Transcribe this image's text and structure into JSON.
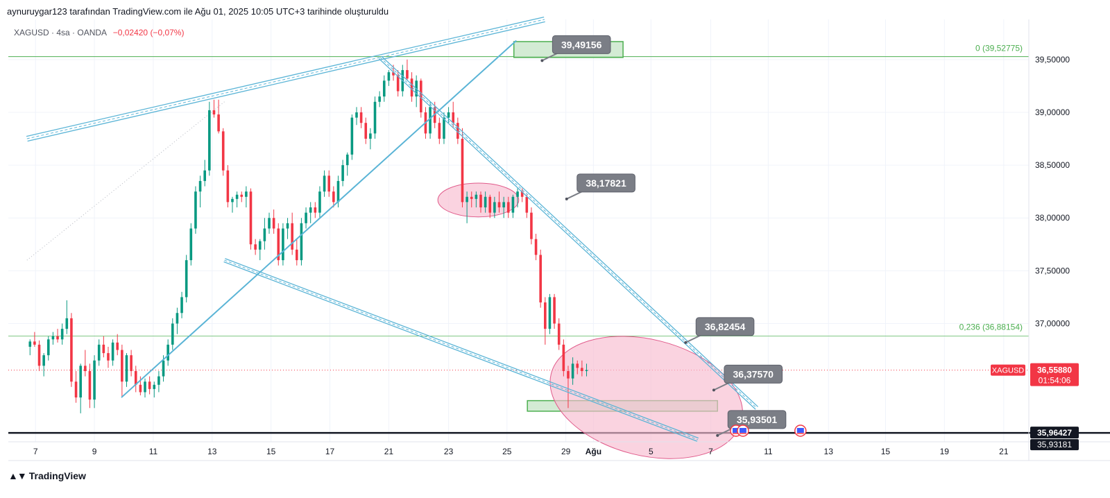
{
  "header": {
    "caption": "aynuruygar123 tarafından TradingView.com ile Ağu 01, 2025 10:05 UTC+3 tarihinde oluşturuldu",
    "symbol_line": "XAGUSD · 4sa · OANDA",
    "change": "−0,02420 (−0,07%)"
  },
  "footer": {
    "brand": "TradingView",
    "logo_icon": "tradingview-logo-icon"
  },
  "colors": {
    "up": "#089981",
    "down": "#f23645",
    "trend": "#5ab4d6",
    "fib": "#4caf50",
    "zone_fill": "#c8e6c9",
    "ellipse_fill": "#f8bbd0",
    "callout": "#7b7e86"
  },
  "chart_data": {
    "type": "candlestick",
    "symbol": "XAGUSD",
    "interval": "4sa",
    "y_axis": {
      "ylim": [
        35.88,
        39.88
      ],
      "ticks": [
        "39,50000",
        "39,00000",
        "38,50000",
        "38,00000",
        "37,50000",
        "37,00000"
      ]
    },
    "x_axis": {
      "ticks": [
        "7",
        "9",
        "11",
        "13",
        "15",
        "17",
        "21",
        "23",
        "25",
        "29",
        "Ağu",
        "5",
        "7",
        "11",
        "13",
        "15",
        "19",
        "21"
      ]
    },
    "candles": [
      [
        36.78,
        36.85,
        36.7,
        36.83
      ],
      [
        36.83,
        36.92,
        36.78,
        36.8
      ],
      [
        36.8,
        36.84,
        36.55,
        36.6
      ],
      [
        36.6,
        36.72,
        36.5,
        36.7
      ],
      [
        36.7,
        36.88,
        36.65,
        36.85
      ],
      [
        36.85,
        36.92,
        36.8,
        36.88
      ],
      [
        36.88,
        36.95,
        36.82,
        36.85
      ],
      [
        36.85,
        37.0,
        36.8,
        36.95
      ],
      [
        36.95,
        37.22,
        36.9,
        37.05
      ],
      [
        37.05,
        37.1,
        36.4,
        36.45
      ],
      [
        36.45,
        36.55,
        36.25,
        36.3
      ],
      [
        36.3,
        36.62,
        36.15,
        36.6
      ],
      [
        36.6,
        36.75,
        36.5,
        36.55
      ],
      [
        36.55,
        36.62,
        36.2,
        36.28
      ],
      [
        36.28,
        36.7,
        36.2,
        36.65
      ],
      [
        36.65,
        36.85,
        36.6,
        36.8
      ],
      [
        36.8,
        36.88,
        36.68,
        36.72
      ],
      [
        36.72,
        36.78,
        36.58,
        36.65
      ],
      [
        36.65,
        36.85,
        36.6,
        36.82
      ],
      [
        36.82,
        36.9,
        36.7,
        36.75
      ],
      [
        36.75,
        36.8,
        36.3,
        36.45
      ],
      [
        36.45,
        36.72,
        36.4,
        36.7
      ],
      [
        36.7,
        36.75,
        36.5,
        36.55
      ],
      [
        36.55,
        36.6,
        36.35,
        36.42
      ],
      [
        36.42,
        36.5,
        36.32,
        36.35
      ],
      [
        36.35,
        36.48,
        36.3,
        36.45
      ],
      [
        36.45,
        36.5,
        36.33,
        36.38
      ],
      [
        36.38,
        36.45,
        36.3,
        36.42
      ],
      [
        36.42,
        36.55,
        36.35,
        36.5
      ],
      [
        36.5,
        36.7,
        36.45,
        36.65
      ],
      [
        36.65,
        36.85,
        36.6,
        36.8
      ],
      [
        36.8,
        37.05,
        36.75,
        37.0
      ],
      [
        37.0,
        37.15,
        36.9,
        37.1
      ],
      [
        37.1,
        37.3,
        37.05,
        37.25
      ],
      [
        37.25,
        37.65,
        37.2,
        37.6
      ],
      [
        37.6,
        37.95,
        37.55,
        37.9
      ],
      [
        37.9,
        38.3,
        37.85,
        38.25
      ],
      [
        38.25,
        38.4,
        38.1,
        38.35
      ],
      [
        38.35,
        38.55,
        38.3,
        38.45
      ],
      [
        38.45,
        39.1,
        38.4,
        39.02
      ],
      [
        39.02,
        39.12,
        38.95,
        38.98
      ],
      [
        38.98,
        39.12,
        38.8,
        38.82
      ],
      [
        38.82,
        38.85,
        38.4,
        38.45
      ],
      [
        38.45,
        38.5,
        38.1,
        38.15
      ],
      [
        38.15,
        38.2,
        38.05,
        38.18
      ],
      [
        38.18,
        38.25,
        38.1,
        38.22
      ],
      [
        38.22,
        38.25,
        38.15,
        38.2
      ],
      [
        38.2,
        38.3,
        38.1,
        38.25
      ],
      [
        38.25,
        38.28,
        37.7,
        37.75
      ],
      [
        37.75,
        37.8,
        37.65,
        37.7
      ],
      [
        37.7,
        37.8,
        37.6,
        37.78
      ],
      [
        37.78,
        38.0,
        37.7,
        37.9
      ],
      [
        37.9,
        38.05,
        37.85,
        38.0
      ],
      [
        38.0,
        38.08,
        37.85,
        37.9
      ],
      [
        37.9,
        37.95,
        37.55,
        37.6
      ],
      [
        37.6,
        37.95,
        37.55,
        37.9
      ],
      [
        37.9,
        38.0,
        37.8,
        37.95
      ],
      [
        37.95,
        38.05,
        37.65,
        37.7
      ],
      [
        37.7,
        37.8,
        37.55,
        37.6
      ],
      [
        37.6,
        38.0,
        37.55,
        37.95
      ],
      [
        37.95,
        38.1,
        37.9,
        38.05
      ],
      [
        38.05,
        38.15,
        37.95,
        38.1
      ],
      [
        38.1,
        38.15,
        38.0,
        38.05
      ],
      [
        38.05,
        38.3,
        38.0,
        38.25
      ],
      [
        38.25,
        38.45,
        38.2,
        38.4
      ],
      [
        38.4,
        38.45,
        38.2,
        38.25
      ],
      [
        38.25,
        38.3,
        38.1,
        38.15
      ],
      [
        38.15,
        38.4,
        38.1,
        38.35
      ],
      [
        38.35,
        38.55,
        38.3,
        38.5
      ],
      [
        38.5,
        38.62,
        38.4,
        38.6
      ],
      [
        38.6,
        38.98,
        38.55,
        38.95
      ],
      [
        38.95,
        39.05,
        38.88,
        39.0
      ],
      [
        39.0,
        39.05,
        38.85,
        38.9
      ],
      [
        38.9,
        38.95,
        38.7,
        38.75
      ],
      [
        38.75,
        38.85,
        38.65,
        38.8
      ],
      [
        38.8,
        39.15,
        38.75,
        39.1
      ],
      [
        39.1,
        39.2,
        39.05,
        39.15
      ],
      [
        39.15,
        39.35,
        39.1,
        39.3
      ],
      [
        39.3,
        39.4,
        39.25,
        39.38
      ],
      [
        39.38,
        39.45,
        39.3,
        39.35
      ],
      [
        39.35,
        39.4,
        39.15,
        39.2
      ],
      [
        39.2,
        39.45,
        39.15,
        39.4
      ],
      [
        39.4,
        39.5,
        39.3,
        39.32
      ],
      [
        39.32,
        39.38,
        39.1,
        39.15
      ],
      [
        39.15,
        39.35,
        39.05,
        39.3
      ],
      [
        39.3,
        39.32,
        38.95,
        39.0
      ],
      [
        39.0,
        39.05,
        38.75,
        38.8
      ],
      [
        38.8,
        39.1,
        38.75,
        39.05
      ],
      [
        39.05,
        39.1,
        38.85,
        38.9
      ],
      [
        38.9,
        38.95,
        38.7,
        38.75
      ],
      [
        38.75,
        39.0,
        38.7,
        38.95
      ],
      [
        38.95,
        39.05,
        38.9,
        39.0
      ],
      [
        39.0,
        39.1,
        38.85,
        38.9
      ],
      [
        38.9,
        38.95,
        38.7,
        38.75
      ],
      [
        38.75,
        38.85,
        38.1,
        38.15
      ],
      [
        38.15,
        38.25,
        37.95,
        38.2
      ],
      [
        38.2,
        38.25,
        38.1,
        38.18
      ],
      [
        38.18,
        38.25,
        38.1,
        38.22
      ],
      [
        38.22,
        38.25,
        38.05,
        38.1
      ],
      [
        38.1,
        38.25,
        38.05,
        38.2
      ],
      [
        38.2,
        38.22,
        38.0,
        38.05
      ],
      [
        38.05,
        38.2,
        38.0,
        38.15
      ],
      [
        38.15,
        38.25,
        38.05,
        38.1
      ],
      [
        38.1,
        38.2,
        38.0,
        38.15
      ],
      [
        38.15,
        38.2,
        38.0,
        38.05
      ],
      [
        38.05,
        38.22,
        38.0,
        38.2
      ],
      [
        38.2,
        38.28,
        38.1,
        38.25
      ],
      [
        38.25,
        38.28,
        38.15,
        38.2
      ],
      [
        38.2,
        38.22,
        38.0,
        38.05
      ],
      [
        38.05,
        38.1,
        37.75,
        37.8
      ],
      [
        37.8,
        37.85,
        37.6,
        37.65
      ],
      [
        37.65,
        37.7,
        37.15,
        37.2
      ],
      [
        37.2,
        37.25,
        36.8,
        36.95
      ],
      [
        36.95,
        37.28,
        36.9,
        37.25
      ],
      [
        37.25,
        37.28,
        36.95,
        37.0
      ],
      [
        37.0,
        37.05,
        36.75,
        36.8
      ],
      [
        36.8,
        36.85,
        36.5,
        36.55
      ],
      [
        36.55,
        36.6,
        36.2,
        36.48
      ],
      [
        36.48,
        36.68,
        36.42,
        36.62
      ],
      [
        36.62,
        36.65,
        36.52,
        36.58
      ],
      [
        36.58,
        36.65,
        36.5,
        36.55
      ],
      [
        36.55,
        36.62,
        36.5,
        36.56
      ]
    ],
    "candle_start_index": 2,
    "horizontal_levels": [
      {
        "name": "fib-0",
        "value": 39.52775,
        "label": "0 (39,52775)"
      },
      {
        "name": "fib-0236",
        "value": 36.88154,
        "label": "0,236 (36,88154)"
      },
      {
        "name": "support",
        "value": 35.96427
      },
      {
        "name": "current",
        "value": 36.5588
      }
    ],
    "price_labels": [
      {
        "name": "last-price",
        "symbol": "XAGUSD",
        "price": "36,55880",
        "countdown": "01:54:06"
      },
      {
        "name": "support-price",
        "price": "35,96427"
      },
      {
        "name": "low-price",
        "price": "35,93181"
      }
    ],
    "callouts": [
      {
        "name": "callout-1",
        "text": "39,49156",
        "at": [
          42.5,
          39.49
        ]
      },
      {
        "name": "callout-2",
        "text": "38,17821",
        "at": [
          44.5,
          38.18
        ]
      },
      {
        "name": "callout-3",
        "text": "36,82454",
        "at": [
          54.2,
          36.82
        ]
      },
      {
        "name": "callout-4",
        "text": "36,37570",
        "at": [
          56.5,
          36.37
        ]
      },
      {
        "name": "callout-5",
        "text": "35,93501",
        "at": [
          56.8,
          35.94
        ]
      }
    ],
    "drawings": {
      "channel_top": [
        [
          0.5,
          38.75
        ],
        [
          42.7,
          39.88
        ]
      ],
      "up_trendline": [
        [
          8.2,
          36.3
        ],
        [
          40.4,
          39.68
        ]
      ],
      "down_trendline_upper": [
        [
          29.3,
          39.52
        ],
        [
          60,
          36.2
        ]
      ],
      "down_trendline_lower": [
        [
          16.6,
          37.6
        ],
        [
          55.2,
          35.9
        ]
      ],
      "dotted_trend": [
        [
          0.5,
          37.6
        ],
        [
          16.6,
          39.1
        ]
      ],
      "zones": [
        {
          "name": "target-zone",
          "from": [
            40.2,
            39.67
          ],
          "to": [
            49.1,
            39.52
          ]
        },
        {
          "name": "support-zone",
          "from": [
            41.3,
            36.27
          ],
          "to": [
            56.8,
            36.17
          ]
        }
      ],
      "ellipses": [
        {
          "name": "consolidation-ellipse",
          "center": [
            37.3,
            38.17
          ],
          "rx": 3.3,
          "ry": 0.16
        },
        {
          "name": "target-ellipse",
          "center": [
            51.0,
            36.3
          ],
          "rx": 8.0,
          "ry": 0.55
        }
      ]
    }
  }
}
